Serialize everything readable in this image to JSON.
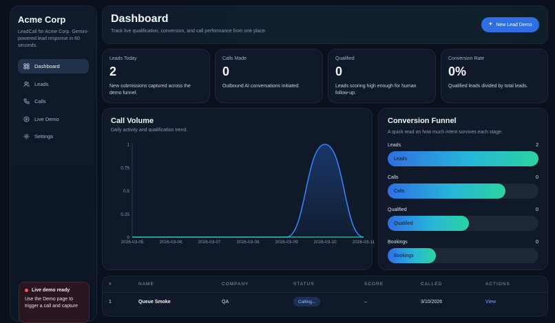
{
  "sidebar": {
    "brand": "Acme Corp",
    "subtitle": "LeadCall for Acme Corp. Gemini-powered lead response in 60 seconds.",
    "items": [
      {
        "label": "Dashboard",
        "icon": "grid-icon",
        "active": true
      },
      {
        "label": "Leads",
        "icon": "users-icon",
        "active": false
      },
      {
        "label": "Calls",
        "icon": "phone-icon",
        "active": false
      },
      {
        "label": "Live Demo",
        "icon": "play-icon",
        "active": false
      },
      {
        "label": "Settings",
        "icon": "gear-icon",
        "active": false
      }
    ],
    "live_card": {
      "title": "Live demo ready",
      "text": "Use the Demo page to trigger a call and capture"
    }
  },
  "header": {
    "title": "Dashboard",
    "subtitle": "Track live qualification, conversion, and call performance from one place.",
    "new_lead_label": "New Lead Demo"
  },
  "stats": [
    {
      "label": "Leads Today",
      "value": "2",
      "desc": "New submissions captured across the demo funnel."
    },
    {
      "label": "Calls Made",
      "value": "0",
      "desc": "Outbound AI conversations initiated."
    },
    {
      "label": "Qualified",
      "value": "0",
      "desc": "Leads scoring high enough for human follow-up."
    },
    {
      "label": "Conversion Rate",
      "value": "0%",
      "desc": "Qualified leads divided by total leads."
    }
  ],
  "call_volume": {
    "title": "Call Volume",
    "subtitle": "Daily activity and qualification trend."
  },
  "chart_data": {
    "type": "area",
    "x": [
      "2026-03-05",
      "2026-03-06",
      "2026-03-07",
      "2026-03-08",
      "2026-03-09",
      "2026-03-10",
      "2026-03-11"
    ],
    "series": [
      {
        "values": [
          0,
          0,
          0,
          0,
          0,
          1,
          0
        ],
        "color": "#3b82f6"
      },
      {
        "values": [
          0,
          0,
          0,
          0,
          0,
          0,
          0
        ],
        "color": "#2bd3a0"
      }
    ],
    "yticks": [
      "0",
      "0.25",
      "0.5",
      "0.75",
      "1"
    ],
    "ylim": [
      0,
      1
    ],
    "xlabel": "",
    "ylabel": ""
  },
  "funnel": {
    "title": "Conversion Funnel",
    "subtitle": "A quick read on how much intent survives each stage.",
    "rows": [
      {
        "label": "Leads",
        "count": "2",
        "bar_label": "Leads",
        "fill": 1.0
      },
      {
        "label": "Calls",
        "count": "0",
        "bar_label": "Calls",
        "fill": 0.78
      },
      {
        "label": "Qualified",
        "count": "0",
        "bar_label": "Qualified",
        "fill": 0.54
      },
      {
        "label": "Bookings",
        "count": "0",
        "bar_label": "Bookings",
        "fill": 0.32
      }
    ]
  },
  "table": {
    "headers": [
      "#",
      "NAME",
      "COMPANY",
      "STATUS",
      "SCORE",
      "CALLED",
      "ACTIONS"
    ],
    "rows": [
      {
        "num": "1",
        "name": "Queue Smoke",
        "company": "QA",
        "status": "Calling...",
        "score": "–",
        "called": "3/10/2026",
        "action": "View"
      }
    ]
  }
}
